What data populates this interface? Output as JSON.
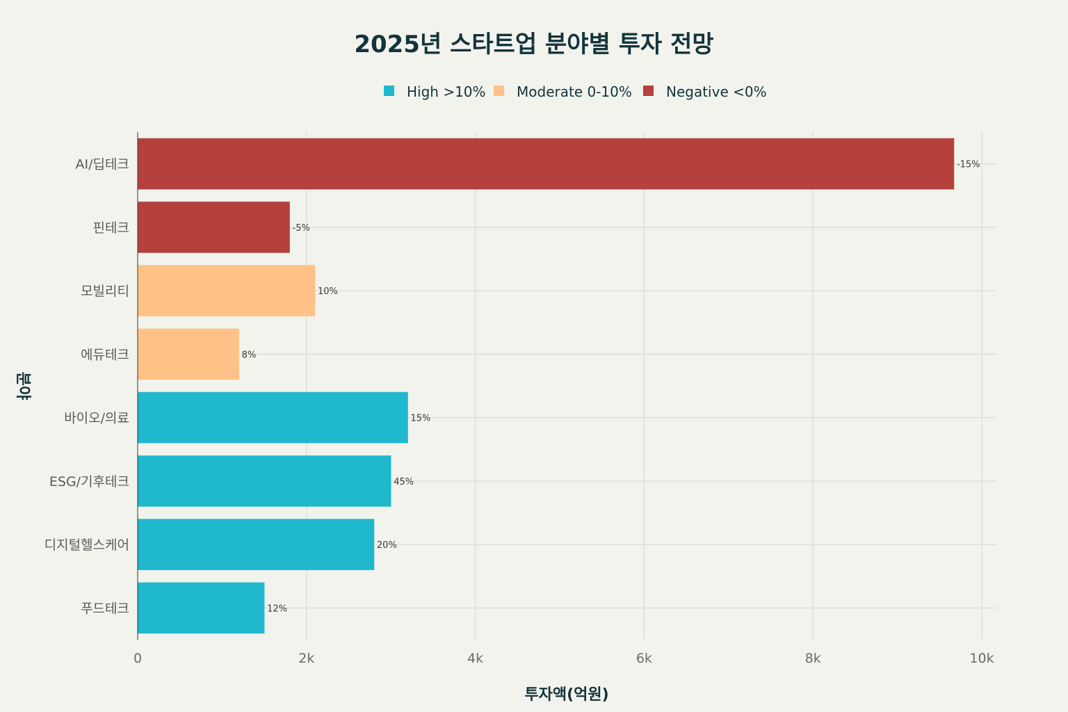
{
  "chart_data": {
    "type": "bar",
    "orientation": "horizontal",
    "title": "2025년 스타트업 분야별 투자 전망",
    "xlabel": "투자액(억원)",
    "ylabel": "분야",
    "xlim": [
      0,
      10000
    ],
    "xticks": [
      0,
      2000,
      4000,
      6000,
      8000,
      10000
    ],
    "xtick_labels": [
      "0",
      "2k",
      "4k",
      "6k",
      "8k",
      "10k"
    ],
    "grid": true,
    "legend_position": "top-center",
    "legend": [
      {
        "key": "high",
        "label": "High >10%",
        "color": "#1fb8cd"
      },
      {
        "key": "moderate",
        "label": "Moderate 0-10%",
        "color": "#ffc185"
      },
      {
        "key": "negative",
        "label": "Negative <0%",
        "color": "#b4413c"
      }
    ],
    "categories": [
      "AI/딥테크",
      "핀테크",
      "모빌리티",
      "에듀테크",
      "바이오/의료",
      "ESG/기후테크",
      "디지털헬스케어",
      "푸드테크"
    ],
    "values": [
      9670,
      1800,
      2100,
      1200,
      3200,
      3000,
      2800,
      1500
    ],
    "growth_labels": [
      "-15%",
      "-5%",
      "10%",
      "8%",
      "15%",
      "45%",
      "20%",
      "12%"
    ],
    "groups": [
      "negative",
      "negative",
      "moderate",
      "moderate",
      "high",
      "high",
      "high",
      "high"
    ]
  }
}
